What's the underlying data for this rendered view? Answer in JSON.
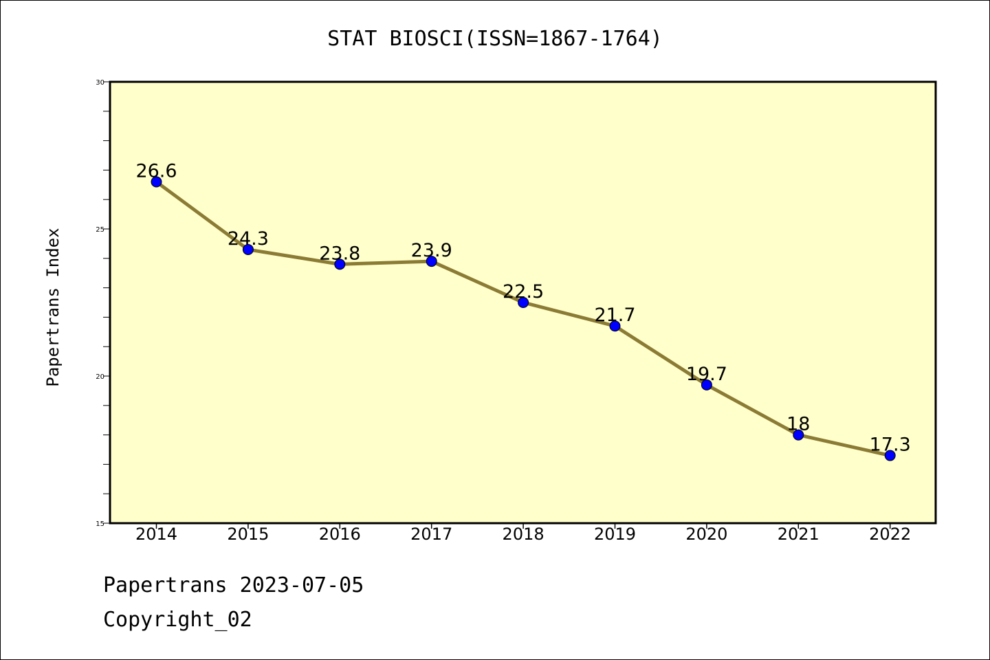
{
  "colors": {
    "plot_background": "#ffffcc",
    "line": "#8b7b35",
    "marker": "#0000ff",
    "axes": "#000000"
  },
  "footer": {
    "line1": "Papertrans 2023-07-05",
    "line2": "Copyright_02"
  },
  "chart_data": {
    "type": "line",
    "title": "STAT BIOSCI(ISSN=1867-1764)",
    "xlabel": "",
    "ylabel": "Papertrans Index",
    "categories": [
      "2014",
      "2015",
      "2016",
      "2017",
      "2018",
      "2019",
      "2020",
      "2021",
      "2022"
    ],
    "series": [
      {
        "values": [
          26.6,
          24.3,
          23.8,
          23.9,
          22.5,
          21.7,
          19.7,
          18,
          17.3
        ],
        "data_labels": [
          "26.6",
          "24.3",
          "23.8",
          "23.9",
          "22.5",
          "21.7",
          "19.7",
          "18",
          "17.3"
        ]
      }
    ],
    "ylim": [
      15,
      30
    ],
    "yticks": [
      15,
      20,
      25,
      30
    ],
    "ytick_labels": [
      "15",
      "20",
      "25",
      "30"
    ],
    "y_minor_step": 1,
    "grid": false,
    "legend": "none"
  }
}
